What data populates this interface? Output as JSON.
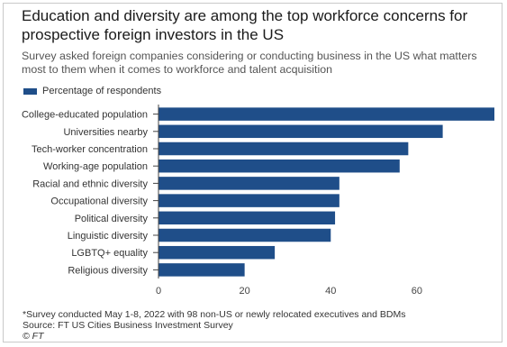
{
  "title": "Education and diversity are among the top workforce concerns for prospective foreign investors in the US",
  "subtitle": "Survey asked foreign companies considering or conducting business in the US what matters most to them when it comes to workforce and talent acquisition",
  "legend_label": "Percentage of respondents",
  "footnote": "*Survey conducted May 1-8, 2022 with 98 non-US or newly relocated executives and BDMs",
  "source": "Source: FT US Cities Business Investment Survey",
  "copyright": "© FT",
  "chart_data": {
    "type": "bar",
    "orientation": "horizontal",
    "title": "Education and diversity are among the top workforce concerns for prospective foreign investors in the US",
    "subtitle": "Survey asked foreign companies considering or conducting business in the US what matters most to them when it comes to workforce and talent acquisition",
    "categories": [
      "College-educated population",
      "Universities nearby",
      "Tech-worker concentration",
      "Working-age population",
      "Racial and ethnic diversity",
      "Occupational diversity",
      "Political diversity",
      "Linguistic diversity",
      "LGBTQ+ equality",
      "Religious diversity"
    ],
    "series": [
      {
        "name": "Percentage of respondents",
        "values": [
          78,
          66,
          58,
          56,
          42,
          42,
          41,
          40,
          27,
          20
        ]
      }
    ],
    "xlim": [
      0,
      78
    ],
    "xticks": [
      0,
      20,
      40,
      60
    ],
    "grid": false,
    "legend": "top-left",
    "bar_color": "#1f4e89",
    "xlabel": "",
    "ylabel": ""
  }
}
